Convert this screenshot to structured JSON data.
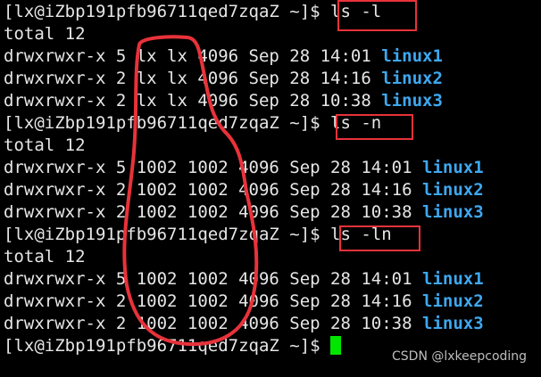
{
  "prompt": "[lx@iZbp191pfb96711qed7zqaZ ~]$ ",
  "lines": [
    {
      "text": "[lx@iZbp191pfb96711qed7zqaZ ~]$ ls -l",
      "dir": ""
    },
    {
      "text": "total 12",
      "dir": ""
    },
    {
      "text": "drwxrwxr-x 5 lx lx 4096 Sep 28 14:01 ",
      "dir": "linux1"
    },
    {
      "text": "drwxrwxr-x 2 lx lx 4096 Sep 28 14:16 ",
      "dir": "linux2"
    },
    {
      "text": "drwxrwxr-x 2 lx lx 4096 Sep 28 10:38 ",
      "dir": "linux3"
    },
    {
      "text": "[lx@iZbp191pfb96711qed7zqaZ ~]$ ls -n",
      "dir": ""
    },
    {
      "text": "total 12",
      "dir": ""
    },
    {
      "text": "drwxrwxr-x 5 1002 1002 4096 Sep 28 14:01 ",
      "dir": "linux1"
    },
    {
      "text": "drwxrwxr-x 2 1002 1002 4096 Sep 28 14:16 ",
      "dir": "linux2"
    },
    {
      "text": "drwxrwxr-x 2 1002 1002 4096 Sep 28 10:38 ",
      "dir": "linux3"
    },
    {
      "text": "[lx@iZbp191pfb96711qed7zqaZ ~]$ ls -ln",
      "dir": ""
    },
    {
      "text": "total 12",
      "dir": ""
    },
    {
      "text": "drwxrwxr-x 5 1002 1002 4096 Sep 28 14:01 ",
      "dir": "linux1"
    },
    {
      "text": "drwxrwxr-x 2 1002 1002 4096 Sep 28 14:16 ",
      "dir": "linux2"
    },
    {
      "text": "drwxrwxr-x 2 1002 1002 4096 Sep 28 10:38 ",
      "dir": "linux3"
    }
  ],
  "watermark": "CSDN @lxkeepcoding",
  "colors": {
    "directory": "#3ea8f0",
    "cursor": "#00e600",
    "annotation": "#e8323a"
  }
}
